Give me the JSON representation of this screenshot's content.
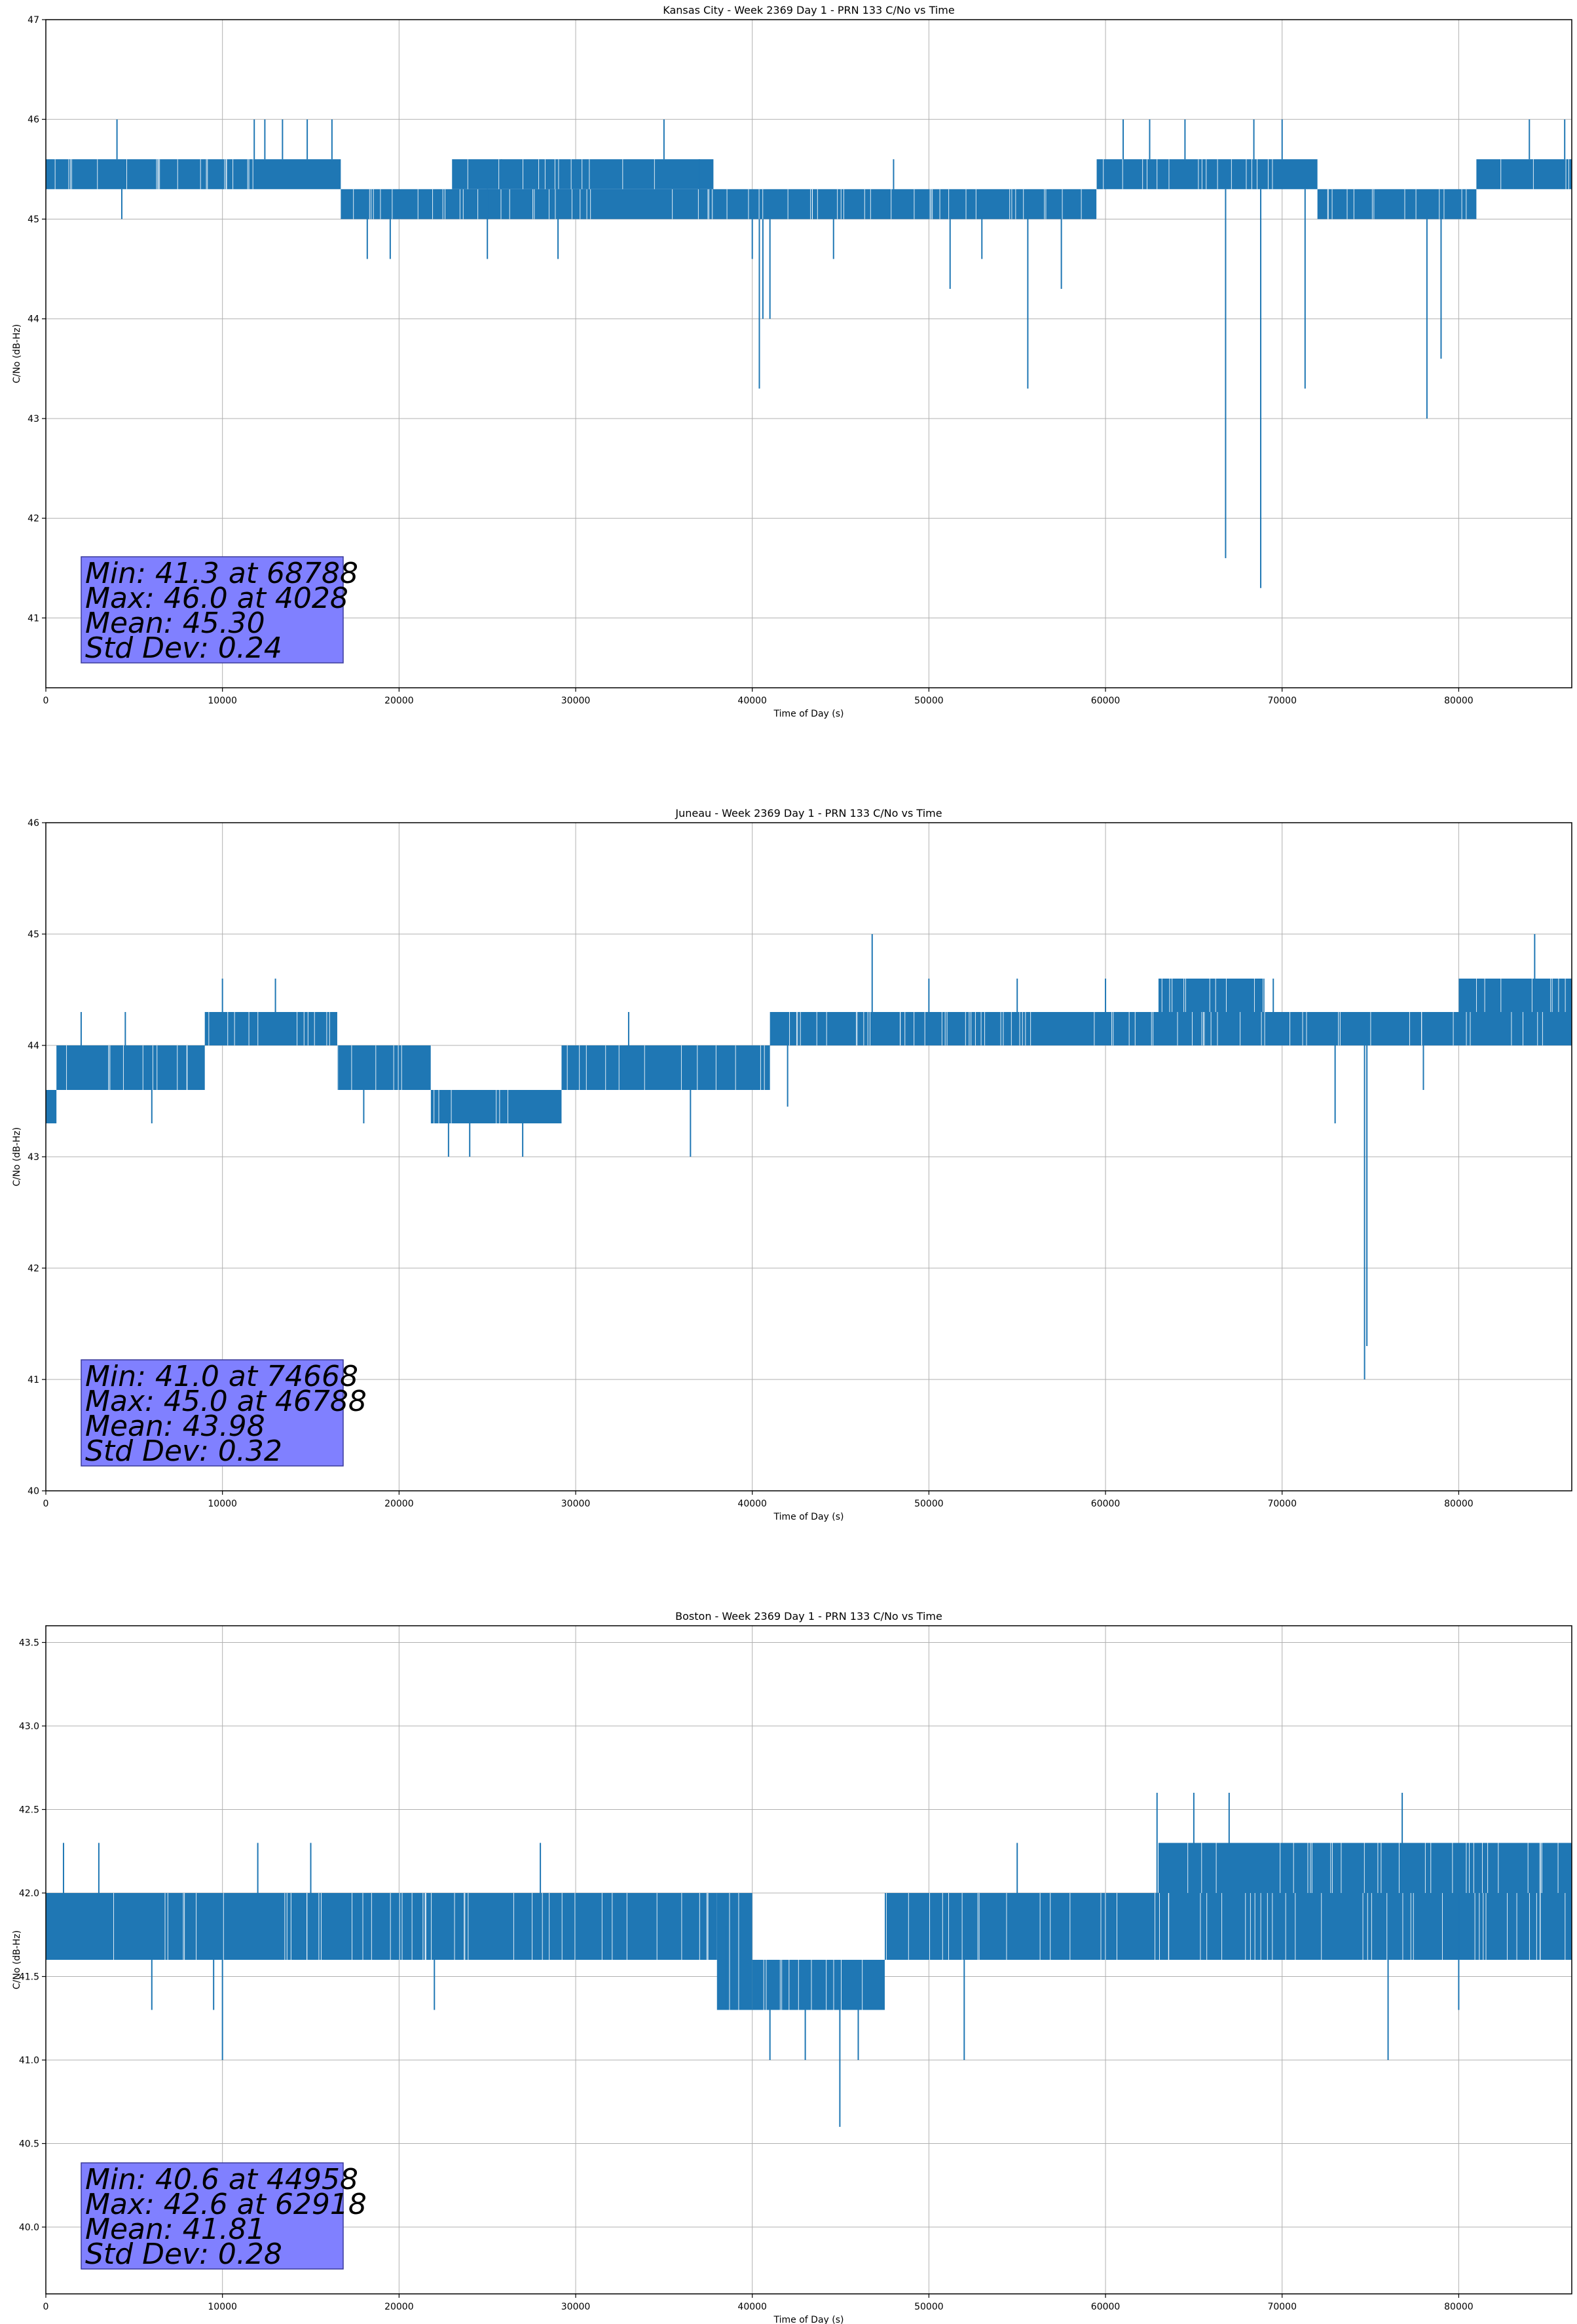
{
  "colors": {
    "line": "#1f77b4",
    "grid": "#b0b0b0",
    "stats_box": "#8080ff",
    "stats_box_border": "#3a3a9a",
    "axes": "#000000"
  },
  "chart_data": [
    {
      "type": "line",
      "title": "Kansas City - Week 2369 Day 1 - PRN 133 C/No vs Time",
      "xlabel": "Time of Day (s)",
      "ylabel": "C/No (dB-Hz)",
      "xlim": [
        0,
        86400
      ],
      "ylim": [
        40.3,
        47
      ],
      "xticks": [
        0,
        10000,
        20000,
        30000,
        40000,
        50000,
        60000,
        70000,
        80000
      ],
      "yticks": [
        41,
        42,
        43,
        44,
        45,
        46,
        47
      ],
      "ytick_labels": [
        "41",
        "42",
        "43",
        "44",
        "45",
        "46",
        "47"
      ],
      "grid": true,
      "stats": [
        "Min: 41.3 at 68788",
        "Max: 46.0 at 4028",
        "Mean: 45.30",
        "Std Dev: 0.24"
      ],
      "bands": [
        {
          "x": [
            0,
            16700
          ],
          "y": [
            45.3,
            45.6
          ]
        },
        {
          "x": [
            16700,
            37800
          ],
          "y": [
            45.0,
            45.3
          ]
        },
        {
          "x": [
            23000,
            37800
          ],
          "y": [
            45.3,
            45.6
          ]
        },
        {
          "x": [
            37800,
            59500
          ],
          "y": [
            45.0,
            45.3
          ]
        },
        {
          "x": [
            59500,
            72000
          ],
          "y": [
            45.3,
            45.6
          ]
        },
        {
          "x": [
            72000,
            81000
          ],
          "y": [
            45.0,
            45.3
          ]
        },
        {
          "x": [
            81000,
            86400
          ],
          "y": [
            45.3,
            45.6
          ]
        }
      ],
      "spikes": [
        {
          "x": 4028,
          "y": 46.0
        },
        {
          "x": 4300,
          "y": 45.0
        },
        {
          "x": 11800,
          "y": 46.0
        },
        {
          "x": 12400,
          "y": 46.0
        },
        {
          "x": 13400,
          "y": 46.0
        },
        {
          "x": 14800,
          "y": 46.0
        },
        {
          "x": 16200,
          "y": 46.0
        },
        {
          "x": 18200,
          "y": 44.6
        },
        {
          "x": 19500,
          "y": 44.6
        },
        {
          "x": 25000,
          "y": 44.6
        },
        {
          "x": 25800,
          "y": 45.6
        },
        {
          "x": 29000,
          "y": 44.6
        },
        {
          "x": 35000,
          "y": 46.0
        },
        {
          "x": 37000,
          "y": 45.6
        },
        {
          "x": 40000,
          "y": 44.6
        },
        {
          "x": 40400,
          "y": 43.3
        },
        {
          "x": 40600,
          "y": 44.0
        },
        {
          "x": 41000,
          "y": 44.0
        },
        {
          "x": 44600,
          "y": 44.6
        },
        {
          "x": 48000,
          "y": 45.6
        },
        {
          "x": 51200,
          "y": 44.3
        },
        {
          "x": 53000,
          "y": 44.6
        },
        {
          "x": 55600,
          "y": 43.3
        },
        {
          "x": 57500,
          "y": 44.3
        },
        {
          "x": 61000,
          "y": 46.0
        },
        {
          "x": 62500,
          "y": 46.0
        },
        {
          "x": 64500,
          "y": 46.0
        },
        {
          "x": 66800,
          "y": 41.6
        },
        {
          "x": 68400,
          "y": 46.0
        },
        {
          "x": 68788,
          "y": 41.3
        },
        {
          "x": 70000,
          "y": 46.0
        },
        {
          "x": 71300,
          "y": 43.3
        },
        {
          "x": 78200,
          "y": 43.0
        },
        {
          "x": 79000,
          "y": 43.6
        },
        {
          "x": 84000,
          "y": 46.0
        },
        {
          "x": 86000,
          "y": 46.0
        }
      ]
    },
    {
      "type": "line",
      "title": "Juneau - Week 2369 Day 1 - PRN 133 C/No vs Time",
      "xlabel": "Time of Day (s)",
      "ylabel": "C/No (dB-Hz)",
      "xlim": [
        0,
        86400
      ],
      "ylim": [
        40,
        46
      ],
      "xticks": [
        0,
        10000,
        20000,
        30000,
        40000,
        50000,
        60000,
        70000,
        80000
      ],
      "yticks": [
        40,
        41,
        42,
        43,
        44,
        45,
        46
      ],
      "ytick_labels": [
        "40",
        "41",
        "42",
        "43",
        "44",
        "45",
        "46"
      ],
      "grid": true,
      "stats": [
        "Min: 41.0 at 74668",
        "Max: 45.0 at 46788",
        "Mean: 43.98",
        "Std Dev: 0.32"
      ],
      "bands": [
        {
          "x": [
            0,
            600
          ],
          "y": [
            43.3,
            43.6
          ]
        },
        {
          "x": [
            600,
            9000
          ],
          "y": [
            43.6,
            44.0
          ]
        },
        {
          "x": [
            9000,
            16500
          ],
          "y": [
            44.0,
            44.3
          ]
        },
        {
          "x": [
            16500,
            21800
          ],
          "y": [
            43.6,
            44.0
          ]
        },
        {
          "x": [
            21800,
            29200
          ],
          "y": [
            43.3,
            43.6
          ]
        },
        {
          "x": [
            29200,
            41000
          ],
          "y": [
            43.6,
            44.0
          ]
        },
        {
          "x": [
            41000,
            86400
          ],
          "y": [
            44.0,
            44.3
          ]
        },
        {
          "x": [
            63000,
            69000
          ],
          "y": [
            44.3,
            44.6
          ]
        },
        {
          "x": [
            80000,
            86400
          ],
          "y": [
            44.3,
            44.6
          ]
        }
      ],
      "spikes": [
        {
          "x": 2000,
          "y": 44.3
        },
        {
          "x": 4500,
          "y": 44.3
        },
        {
          "x": 6000,
          "y": 43.3
        },
        {
          "x": 10000,
          "y": 44.6
        },
        {
          "x": 13000,
          "y": 44.6
        },
        {
          "x": 18000,
          "y": 43.3
        },
        {
          "x": 22800,
          "y": 43.0
        },
        {
          "x": 24000,
          "y": 43.0
        },
        {
          "x": 27000,
          "y": 43.0
        },
        {
          "x": 33000,
          "y": 44.3
        },
        {
          "x": 36500,
          "y": 43.0
        },
        {
          "x": 42000,
          "y": 44.3
        },
        {
          "x": 46788,
          "y": 45.0
        },
        {
          "x": 50000,
          "y": 44.6
        },
        {
          "x": 55000,
          "y": 44.6
        },
        {
          "x": 60000,
          "y": 44.6
        },
        {
          "x": 69500,
          "y": 44.6
        },
        {
          "x": 73000,
          "y": 43.3
        },
        {
          "x": 74668,
          "y": 41.0
        },
        {
          "x": 74800,
          "y": 41.3
        },
        {
          "x": 78000,
          "y": 43.6
        },
        {
          "x": 84300,
          "y": 45.0
        }
      ]
    },
    {
      "type": "line",
      "title": "Boston - Week 2369 Day 1 - PRN 133 C/No vs Time",
      "xlabel": "Time of Day (s)",
      "ylabel": "C/No (dB-Hz)",
      "xlim": [
        0,
        86400
      ],
      "ylim": [
        39.6,
        43.6
      ],
      "xticks": [
        0,
        10000,
        20000,
        30000,
        40000,
        50000,
        60000,
        70000,
        80000
      ],
      "yticks": [
        40.0,
        40.5,
        41.0,
        41.5,
        42.0,
        42.5,
        43.0,
        43.5
      ],
      "ytick_labels": [
        "40.0",
        "40.5",
        "41.0",
        "41.5",
        "42.0",
        "42.5",
        "43.0",
        "43.5"
      ],
      "grid": true,
      "stats": [
        "Min: 40.6 at 44958",
        "Max: 42.6 at 62918",
        "Mean: 41.81",
        "Std Dev: 0.28"
      ],
      "bands": [
        {
          "x": [
            0,
            38000
          ],
          "y": [
            41.6,
            42.0
          ]
        },
        {
          "x": [
            38000,
            40000
          ],
          "y": [
            41.3,
            42.0
          ]
        },
        {
          "x": [
            40000,
            47500
          ],
          "y": [
            41.3,
            41.6
          ]
        },
        {
          "x": [
            47500,
            86400
          ],
          "y": [
            41.6,
            42.0
          ]
        },
        {
          "x": [
            63000,
            86400
          ],
          "y": [
            42.0,
            42.3
          ]
        }
      ],
      "spikes": [
        {
          "x": 1000,
          "y": 42.3
        },
        {
          "x": 3000,
          "y": 42.3
        },
        {
          "x": 6000,
          "y": 41.3
        },
        {
          "x": 9500,
          "y": 41.3
        },
        {
          "x": 10000,
          "y": 41.0
        },
        {
          "x": 12000,
          "y": 42.3
        },
        {
          "x": 15000,
          "y": 42.3
        },
        {
          "x": 22000,
          "y": 41.3
        },
        {
          "x": 28000,
          "y": 42.3
        },
        {
          "x": 38500,
          "y": 41.3
        },
        {
          "x": 41000,
          "y": 41.0
        },
        {
          "x": 43000,
          "y": 41.0
        },
        {
          "x": 44958,
          "y": 40.6
        },
        {
          "x": 46000,
          "y": 41.0
        },
        {
          "x": 52000,
          "y": 41.0
        },
        {
          "x": 55000,
          "y": 42.3
        },
        {
          "x": 62918,
          "y": 42.6
        },
        {
          "x": 65000,
          "y": 42.6
        },
        {
          "x": 67000,
          "y": 42.6
        },
        {
          "x": 70000,
          "y": 42.3
        },
        {
          "x": 76000,
          "y": 41.0
        },
        {
          "x": 76800,
          "y": 42.6
        },
        {
          "x": 80000,
          "y": 41.3
        }
      ]
    }
  ]
}
